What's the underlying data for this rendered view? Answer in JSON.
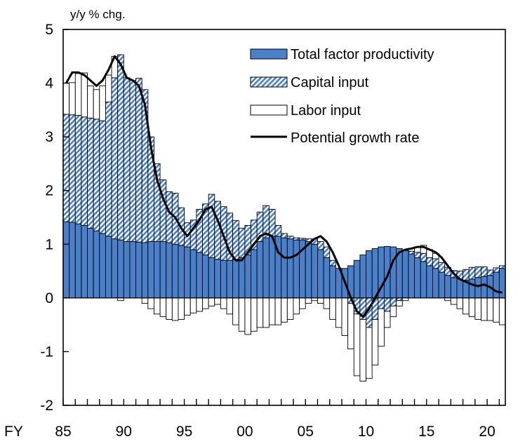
{
  "chart_data": {
    "type": "bar",
    "unit_label": "y/y % chg.",
    "x_prefix": "FY",
    "x_tick_labels": [
      "85",
      "90",
      "95",
      "00",
      "05",
      "10",
      "15",
      "20"
    ],
    "y_tick_labels": [
      "5",
      "4",
      "3",
      "2",
      "1",
      "0",
      "-1",
      "-2"
    ],
    "ylim": [
      -2,
      5
    ],
    "grid": false,
    "legend_position": "top-right",
    "colors": {
      "tfp": "#4a7fc9",
      "capital": "#4a7fc9",
      "labor": "#ffffff",
      "line": "#000000"
    },
    "x": [
      "1985-H1",
      "1985-H2",
      "1986-H1",
      "1986-H2",
      "1987-H1",
      "1987-H2",
      "1988-H1",
      "1988-H2",
      "1989-H1",
      "1989-H2",
      "1990-H1",
      "1990-H2",
      "1991-H1",
      "1991-H2",
      "1992-H1",
      "1992-H2",
      "1993-H1",
      "1993-H2",
      "1994-H1",
      "1994-H2",
      "1995-H1",
      "1995-H2",
      "1996-H1",
      "1996-H2",
      "1997-H1",
      "1997-H2",
      "1998-H1",
      "1998-H2",
      "1999-H1",
      "1999-H2",
      "2000-H1",
      "2000-H2",
      "2001-H1",
      "2001-H2",
      "2002-H1",
      "2002-H2",
      "2003-H1",
      "2003-H2",
      "2004-H1",
      "2004-H2",
      "2005-H1",
      "2005-H2",
      "2006-H1",
      "2006-H2",
      "2007-H1",
      "2007-H2",
      "2008-H1",
      "2008-H2",
      "2009-H1",
      "2009-H2",
      "2010-H1",
      "2010-H2",
      "2011-H1",
      "2011-H2",
      "2012-H1",
      "2012-H2",
      "2013-H1",
      "2013-H2",
      "2014-H1",
      "2014-H2",
      "2015-H1",
      "2015-H2",
      "2016-H1",
      "2016-H2",
      "2017-H1",
      "2017-H2",
      "2018-H1",
      "2018-H2",
      "2019-H1",
      "2019-H2",
      "2020-H1",
      "2020-H2",
      "2021-H1"
    ],
    "series": [
      {
        "name": "Total factor productivity",
        "values": [
          1.42,
          1.41,
          1.38,
          1.35,
          1.3,
          1.25,
          1.2,
          1.15,
          1.1,
          1.08,
          1.05,
          1.05,
          1.04,
          1.03,
          1.05,
          1.05,
          1.05,
          1.03,
          1.0,
          0.98,
          0.95,
          0.9,
          0.85,
          0.8,
          0.75,
          0.72,
          0.7,
          0.7,
          0.72,
          0.75,
          0.8,
          0.9,
          1.05,
          1.12,
          1.15,
          1.15,
          1.12,
          1.1,
          1.08,
          1.08,
          1.05,
          1.0,
          0.9,
          0.75,
          0.6,
          0.55,
          0.55,
          0.6,
          0.7,
          0.8,
          0.88,
          0.92,
          0.95,
          0.96,
          0.95,
          0.92,
          0.88,
          0.82,
          0.75,
          0.68,
          0.6,
          0.55,
          0.48,
          0.42,
          0.38,
          0.35,
          0.33,
          0.35,
          0.38,
          0.4,
          0.42,
          0.48,
          0.55
        ]
      },
      {
        "name": "Capital input",
        "values": [
          2.0,
          2.0,
          2.02,
          2.02,
          2.05,
          2.08,
          2.1,
          2.5,
          3.0,
          3.45,
          3.05,
          3.0,
          3.05,
          2.85,
          1.95,
          1.45,
          1.15,
          0.95,
          0.95,
          0.7,
          0.45,
          0.55,
          0.8,
          0.95,
          1.18,
          1.08,
          1.0,
          0.88,
          0.72,
          0.55,
          0.55,
          0.55,
          0.55,
          0.6,
          0.5,
          0.2,
          0.08,
          0.05,
          0.04,
          0.03,
          0.05,
          0.1,
          0.15,
          0.2,
          0.1,
          0.0,
          0.0,
          -0.1,
          -0.3,
          -0.4,
          -0.55,
          -0.4,
          -0.2,
          -0.25,
          -0.15,
          -0.05,
          0.0,
          0.05,
          0.1,
          0.15,
          0.15,
          0.18,
          0.18,
          0.15,
          0.13,
          0.15,
          0.2,
          0.22,
          0.2,
          0.18,
          0.1,
          0.08,
          0.05
        ]
      },
      {
        "name": "Labor input",
        "values": [
          0.58,
          0.6,
          0.78,
          0.82,
          0.6,
          0.55,
          0.65,
          0.5,
          0.4,
          -0.05,
          0.0,
          0.0,
          0.0,
          -0.1,
          -0.2,
          -0.3,
          -0.35,
          -0.4,
          -0.42,
          -0.4,
          -0.32,
          -0.28,
          -0.25,
          -0.2,
          -0.15,
          -0.12,
          -0.2,
          -0.3,
          -0.5,
          -0.62,
          -0.68,
          -0.62,
          -0.55,
          -0.55,
          -0.5,
          -0.5,
          -0.45,
          -0.4,
          -0.3,
          -0.2,
          -0.1,
          -0.05,
          -0.1,
          -0.2,
          -0.4,
          -0.55,
          -0.7,
          -0.85,
          -1.15,
          -1.15,
          -0.95,
          -0.85,
          -0.7,
          -0.3,
          -0.2,
          -0.1,
          -0.05,
          0.05,
          0.1,
          0.15,
          0.15,
          0.1,
          0.0,
          -0.05,
          -0.12,
          -0.2,
          -0.3,
          -0.35,
          -0.4,
          -0.42,
          -0.42,
          -0.45,
          -0.5
        ]
      },
      {
        "name": "Potential growth rate",
        "values": [
          4.0,
          4.2,
          4.2,
          4.15,
          4.05,
          3.95,
          4.05,
          4.25,
          4.5,
          4.35,
          4.1,
          4.05,
          3.95,
          3.6,
          2.8,
          2.2,
          1.85,
          1.6,
          1.5,
          1.3,
          1.15,
          1.3,
          1.45,
          1.65,
          1.7,
          1.45,
          1.15,
          0.85,
          0.7,
          0.7,
          0.85,
          1.0,
          1.15,
          1.2,
          1.15,
          0.85,
          0.75,
          0.75,
          0.8,
          0.9,
          1.0,
          1.1,
          1.15,
          1.05,
          0.85,
          0.6,
          0.3,
          0.0,
          -0.25,
          -0.35,
          -0.2,
          0.0,
          0.2,
          0.4,
          0.7,
          0.85,
          0.9,
          0.92,
          0.95,
          0.95,
          0.9,
          0.85,
          0.75,
          0.6,
          0.45,
          0.35,
          0.3,
          0.25,
          0.22,
          0.25,
          0.2,
          0.12,
          0.1
        ]
      }
    ]
  }
}
